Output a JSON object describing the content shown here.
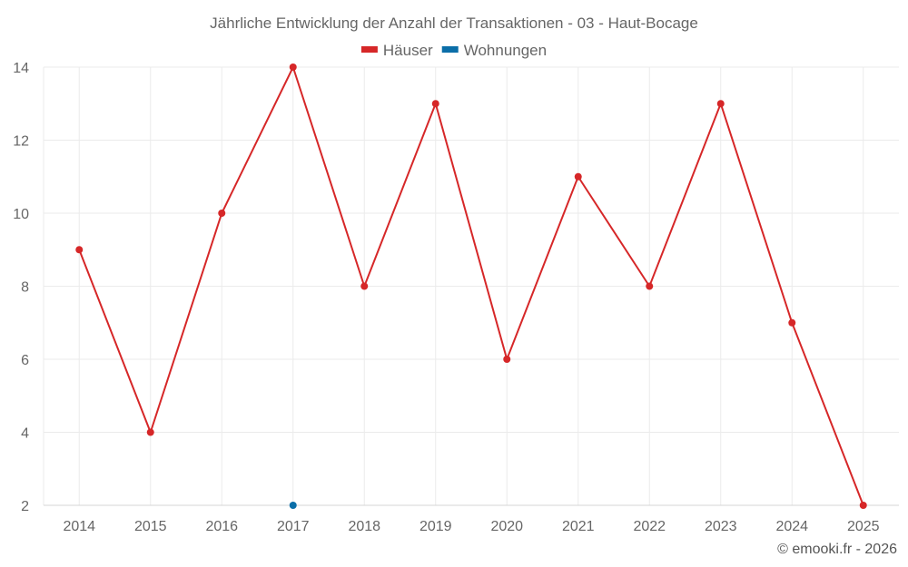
{
  "chart_data": {
    "type": "line",
    "title": "Jährliche Entwicklung der Anzahl der Transaktionen - 03 - Haut-Bocage",
    "categories": [
      "2014",
      "2015",
      "2016",
      "2017",
      "2018",
      "2019",
      "2020",
      "2021",
      "2022",
      "2023",
      "2024",
      "2025"
    ],
    "series": [
      {
        "name": "Häuser",
        "color": "#d62728",
        "values": [
          9,
          4,
          10,
          14,
          8,
          13,
          6,
          11,
          8,
          13,
          7,
          2
        ]
      },
      {
        "name": "Wohnungen",
        "color": "#0b6ea8",
        "values": [
          null,
          null,
          null,
          2,
          null,
          null,
          null,
          null,
          null,
          null,
          null,
          null
        ]
      }
    ],
    "xlabel": "",
    "ylabel": "",
    "ylim": [
      2,
      14
    ],
    "yticks": [
      2,
      4,
      6,
      8,
      10,
      12,
      14
    ],
    "grid": true,
    "legend_position": "top"
  },
  "credit": "© emooki.fr - 2026"
}
